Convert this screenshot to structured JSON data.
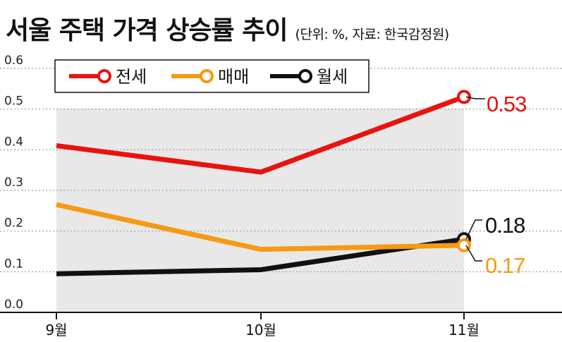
{
  "chart_data": {
    "type": "line",
    "title": "서울 주택 가격 상승률 추이",
    "subtitle": "(단위: %, 자료: 한국감정원)",
    "categories": [
      "9월",
      "10월",
      "11월"
    ],
    "series": [
      {
        "name": "전세",
        "values": [
          0.41,
          0.345,
          0.53
        ],
        "color": "#e8130e"
      },
      {
        "name": "매매",
        "values": [
          0.265,
          0.155,
          0.165
        ],
        "color": "#f59a12"
      },
      {
        "name": "월세",
        "values": [
          0.095,
          0.105,
          0.18
        ],
        "color": "#111111"
      }
    ],
    "yticks": [
      "0.6",
      "0.5",
      "0.4",
      "0.3",
      "0.2",
      "0.1",
      "0.0"
    ],
    "ylim": [
      0,
      0.6
    ],
    "end_labels": [
      "0.53",
      "0.17",
      "0.18"
    ],
    "legend_position": "top-left",
    "grid": "horizontal-dotted",
    "background_color": "#e8e8e8"
  }
}
